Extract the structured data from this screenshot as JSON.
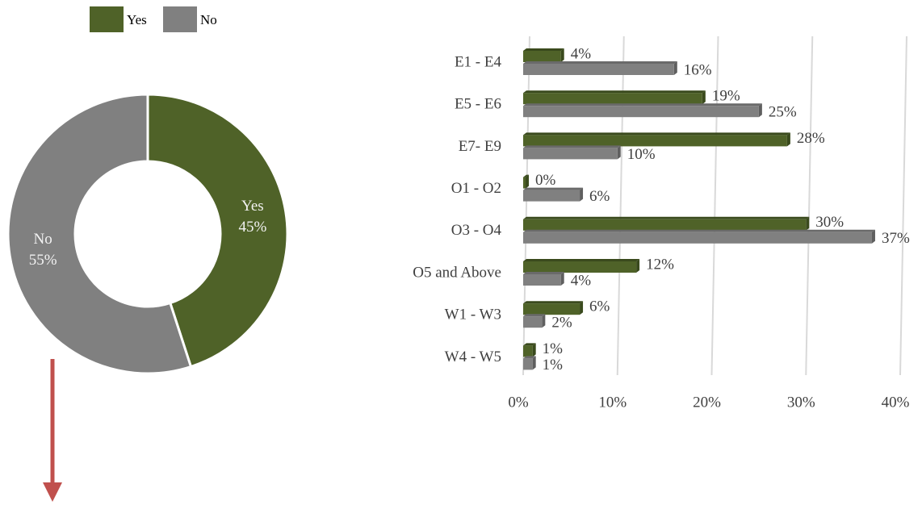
{
  "chart_data": [
    {
      "type": "pie",
      "donut": true,
      "categories": [
        "Yes",
        "No"
      ],
      "values": [
        45,
        55
      ],
      "value_labels": [
        "45%",
        "55%"
      ],
      "colors": [
        "#4f6228",
        "#808080"
      ],
      "legend": "top"
    },
    {
      "type": "bar",
      "orientation": "horizontal",
      "categories": [
        "E1 - E4",
        "E5 - E6",
        "E7- E9",
        "O1 - O2",
        "O3 - O4",
        "O5 and Above",
        "W1 - W3",
        "W4 - W5"
      ],
      "series": [
        {
          "name": "Yes",
          "color": "#4f6228",
          "values": [
            4,
            19,
            28,
            0,
            30,
            12,
            6,
            1
          ],
          "value_labels": [
            "4%",
            "19%",
            "28%",
            "0%",
            "30%",
            "12%",
            "6%",
            "1%"
          ]
        },
        {
          "name": "No",
          "color": "#808080",
          "values": [
            16,
            25,
            10,
            6,
            37,
            4,
            2,
            1
          ],
          "value_labels": [
            "16%",
            "25%",
            "10%",
            "6%",
            "37%",
            "4%",
            "2%",
            "1%"
          ]
        }
      ],
      "xlim": [
        0,
        40
      ],
      "xticks": [
        {
          "value": 0,
          "label": "0%"
        },
        {
          "value": 10,
          "label": "10%"
        },
        {
          "value": 20,
          "label": "20%"
        },
        {
          "value": 30,
          "label": "30%"
        },
        {
          "value": 40,
          "label": "40%"
        }
      ],
      "grid": true
    }
  ]
}
